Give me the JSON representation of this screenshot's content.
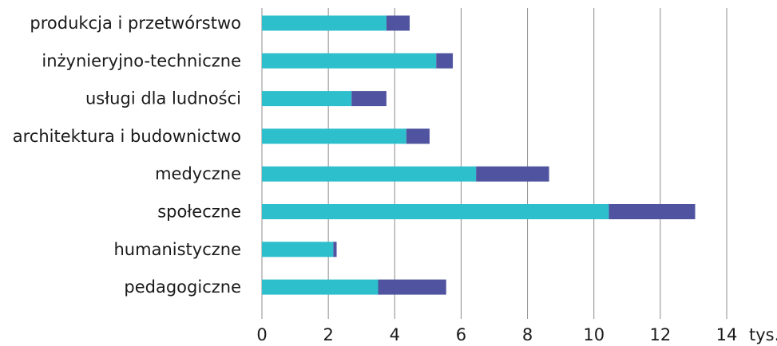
{
  "chart_data": {
    "type": "bar",
    "orientation": "horizontal",
    "stacked": true,
    "categories": [
      "produkcja i przetwórstwo",
      "inżynieryjno-techniczne",
      "usługi dla ludności",
      "architektura i budownictwo",
      "medyczne",
      "społeczne",
      "humanistyczne",
      "pedagogiczne"
    ],
    "series": [
      {
        "color": "#2ebfcc",
        "values": [
          3.75,
          5.25,
          2.7,
          4.35,
          6.45,
          10.45,
          2.15,
          3.5
        ]
      },
      {
        "color": "#4f53a0",
        "values": [
          0.7,
          0.5,
          1.05,
          0.7,
          2.2,
          2.6,
          0.1,
          2.05
        ]
      }
    ],
    "xlim": [
      0,
      14
    ],
    "xticks": [
      "0",
      "2",
      "4",
      "6",
      "8",
      "10",
      "12",
      "14"
    ],
    "x_unit": "tys.",
    "grid": "vertical",
    "legend": "none"
  }
}
